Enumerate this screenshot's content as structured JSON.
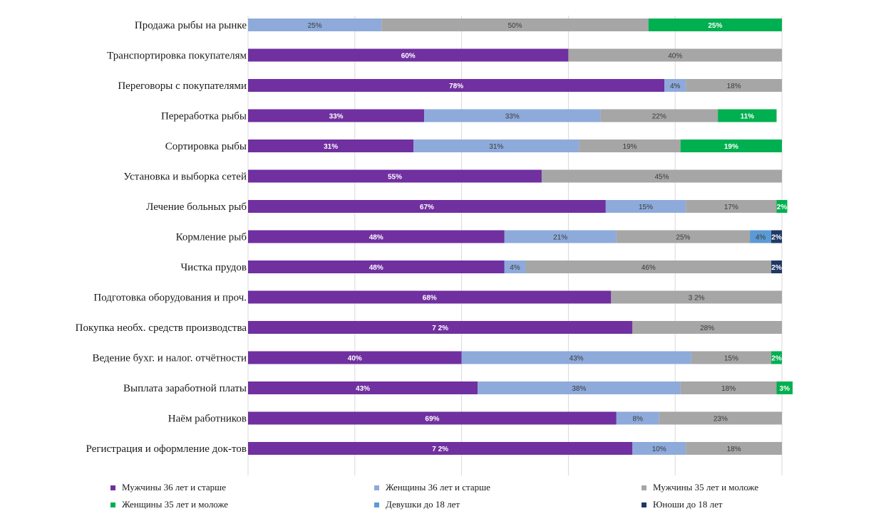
{
  "chart_data": {
    "type": "bar",
    "orientation": "horizontal",
    "stacked": true,
    "percent_stacked": true,
    "xlim": [
      0,
      100
    ],
    "grid": true,
    "legend_placement": "bottom",
    "categories": [
      "Продажа рыбы на рынке",
      "Транспортировка покупателям",
      "Переговоры с покупателями",
      "Переработка рыбы",
      "Сортировка рыбы",
      "Установка и выборка сетей",
      "Лечение больных рыб",
      "Кормление рыб",
      "Чистка прудов",
      "Подготовка оборудования и проч.",
      "Покупка необх. средств производства",
      "Ведение бухг. и налог. отчётности",
      "Выплата заработной платы",
      "Наём работников",
      "Регистрация и оформление док-тов"
    ],
    "series": [
      {
        "name": "Мужчины 36 лет и старше",
        "color": "#7030a0",
        "values": [
          0,
          60,
          78,
          33,
          31,
          55,
          67,
          48,
          48,
          68,
          72,
          40,
          43,
          69,
          72
        ],
        "labels": [
          "",
          "60%",
          "78%",
          "33%",
          "31%",
          "55%",
          "67%",
          "48%",
          "48%",
          "68%",
          "7 2%",
          "40%",
          "43%",
          "69%",
          "7 2%"
        ]
      },
      {
        "name": "Женщины 36 лет и старше",
        "color": "#8eaadb",
        "values": [
          25,
          0,
          4,
          33,
          31,
          0,
          15,
          21,
          4,
          0,
          0,
          43,
          38,
          8,
          10
        ],
        "labels": [
          "25%",
          "",
          "4%",
          "33%",
          "31%",
          "",
          "15%",
          "21%",
          "4%",
          "",
          "",
          "43%",
          "38%",
          "8%",
          "10%"
        ]
      },
      {
        "name": "Мужчины 35 лет и моложе",
        "color": "#a6a6a6",
        "values": [
          50,
          40,
          18,
          22,
          19,
          45,
          17,
          25,
          46,
          32,
          28,
          15,
          18,
          23,
          18
        ],
        "labels": [
          "50%",
          "40%",
          "18%",
          "22%",
          "19%",
          "45%",
          "17%",
          "25%",
          "46%",
          "3 2%",
          "28%",
          "15%",
          "18%",
          "23%",
          "18%"
        ]
      },
      {
        "name": "Женщины 35 лет и моложе",
        "color": "#00b050",
        "values": [
          25,
          0,
          0,
          11,
          19,
          0,
          2,
          0,
          0,
          0,
          0,
          2,
          3,
          0,
          0
        ],
        "labels": [
          "25%",
          "",
          "",
          "11%",
          "19%",
          "",
          "2%",
          "",
          "",
          "",
          "",
          "2%",
          "3%",
          "",
          ""
        ]
      },
      {
        "name": "Девушки до 18 лет",
        "color": "#5b9bd5",
        "values": [
          0,
          0,
          0,
          0,
          0,
          0,
          0,
          4,
          0,
          0,
          0,
          0,
          0,
          0,
          0
        ],
        "labels": [
          "",
          "",
          "",
          "",
          "",
          "",
          "",
          "4%",
          "",
          "",
          "",
          "",
          "",
          "",
          ""
        ]
      },
      {
        "name": "Юноши до 18 лет",
        "color": "#1f3864",
        "values": [
          0,
          0,
          0,
          0,
          0,
          0,
          0,
          2,
          2,
          0,
          0,
          0,
          0,
          0,
          0
        ],
        "labels": [
          "",
          "",
          "",
          "",
          "",
          "",
          "",
          "2%",
          "2%",
          "",
          "",
          "",
          "",
          "",
          ""
        ]
      }
    ]
  }
}
